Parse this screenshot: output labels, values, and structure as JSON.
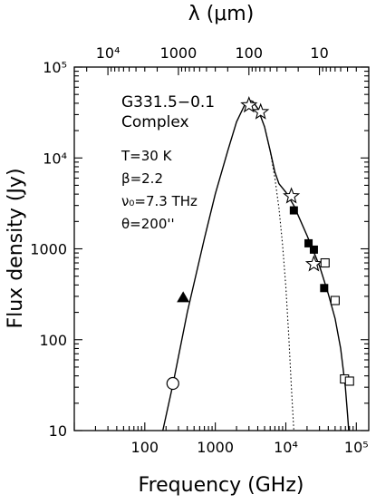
{
  "chart_data": {
    "type": "scatter",
    "title": "",
    "xlabel": "Frequency (GHz)",
    "ylabel": "Flux density (Jy)",
    "top_axis_label": "λ (μm)",
    "xscale": "log",
    "yscale": "log",
    "xlim": [
      10,
      150000
    ],
    "ylim": [
      10,
      100000
    ],
    "x_tick_labels": [
      {
        "x": 100,
        "label": "100"
      },
      {
        "x": 1000,
        "label": "1000"
      },
      {
        "x": 10000,
        "label": "10⁴"
      },
      {
        "x": 100000,
        "label": "10⁵"
      }
    ],
    "y_tick_labels": [
      {
        "y": 10,
        "label": "10"
      },
      {
        "y": 100,
        "label": "100"
      },
      {
        "y": 1000,
        "label": "1000"
      },
      {
        "y": 10000,
        "label": "10⁴"
      },
      {
        "y": 100000,
        "label": "10⁵"
      }
    ],
    "top_tick_labels": [
      {
        "lambda_um": 10000,
        "label": "10⁴"
      },
      {
        "lambda_um": 1000,
        "label": "1000"
      },
      {
        "lambda_um": 100,
        "label": "100"
      },
      {
        "lambda_um": 10,
        "label": "10"
      }
    ],
    "annotations": {
      "source": "G331.5−0.1",
      "source_type": "Complex",
      "temperature": "T=30 K",
      "beta": "β=2.2",
      "nu0": "ν₀=7.3 THz",
      "theta": "θ=200''"
    },
    "series": [
      {
        "marker": "open-circle",
        "points": [
          {
            "x": 250,
            "y": 33
          }
        ]
      },
      {
        "marker": "filled-triangle",
        "points": [
          {
            "x": 350,
            "y": 290
          }
        ]
      },
      {
        "marker": "open-star",
        "points": [
          {
            "x": 3000,
            "y": 38000
          },
          {
            "x": 4400,
            "y": 32000
          },
          {
            "x": 12000,
            "y": 3800
          },
          {
            "x": 25000,
            "y": 680
          }
        ]
      },
      {
        "marker": "filled-square",
        "points": [
          {
            "x": 13000,
            "y": 2650
          },
          {
            "x": 21000,
            "y": 1150
          },
          {
            "x": 25000,
            "y": 980
          },
          {
            "x": 35000,
            "y": 370
          }
        ]
      },
      {
        "marker": "open-square",
        "points": [
          {
            "x": 36000,
            "y": 700
          },
          {
            "x": 50000,
            "y": 270
          },
          {
            "x": 68000,
            "y": 37
          },
          {
            "x": 80000,
            "y": 35
          }
        ]
      }
    ],
    "curves": [
      {
        "style": "solid",
        "points": [
          [
            180,
            10
          ],
          [
            250,
            32
          ],
          [
            400,
            200
          ],
          [
            700,
            1300
          ],
          [
            1000,
            4000
          ],
          [
            1500,
            12000
          ],
          [
            2000,
            25000
          ],
          [
            2600,
            38000
          ],
          [
            3000,
            43000
          ],
          [
            3400,
            42000
          ],
          [
            4000,
            35000
          ],
          [
            5000,
            22000
          ],
          [
            6000,
            12000
          ],
          [
            7000,
            7000
          ],
          [
            8000,
            5200
          ],
          [
            10000,
            4200
          ],
          [
            13000,
            3000
          ],
          [
            20000,
            1400
          ],
          [
            30000,
            650
          ],
          [
            40000,
            320
          ],
          [
            50000,
            170
          ],
          [
            60000,
            80
          ],
          [
            70000,
            30
          ],
          [
            75000,
            15
          ],
          [
            78000,
            10
          ]
        ]
      },
      {
        "style": "dotted",
        "points": [
          [
            4000,
            35000
          ],
          [
            5000,
            22000
          ],
          [
            6000,
            12000
          ],
          [
            7000,
            6000
          ],
          [
            8000,
            2800
          ],
          [
            9000,
            1100
          ],
          [
            10000,
            380
          ],
          [
            11000,
            110
          ],
          [
            12000,
            30
          ],
          [
            13000,
            10
          ]
        ]
      }
    ]
  }
}
